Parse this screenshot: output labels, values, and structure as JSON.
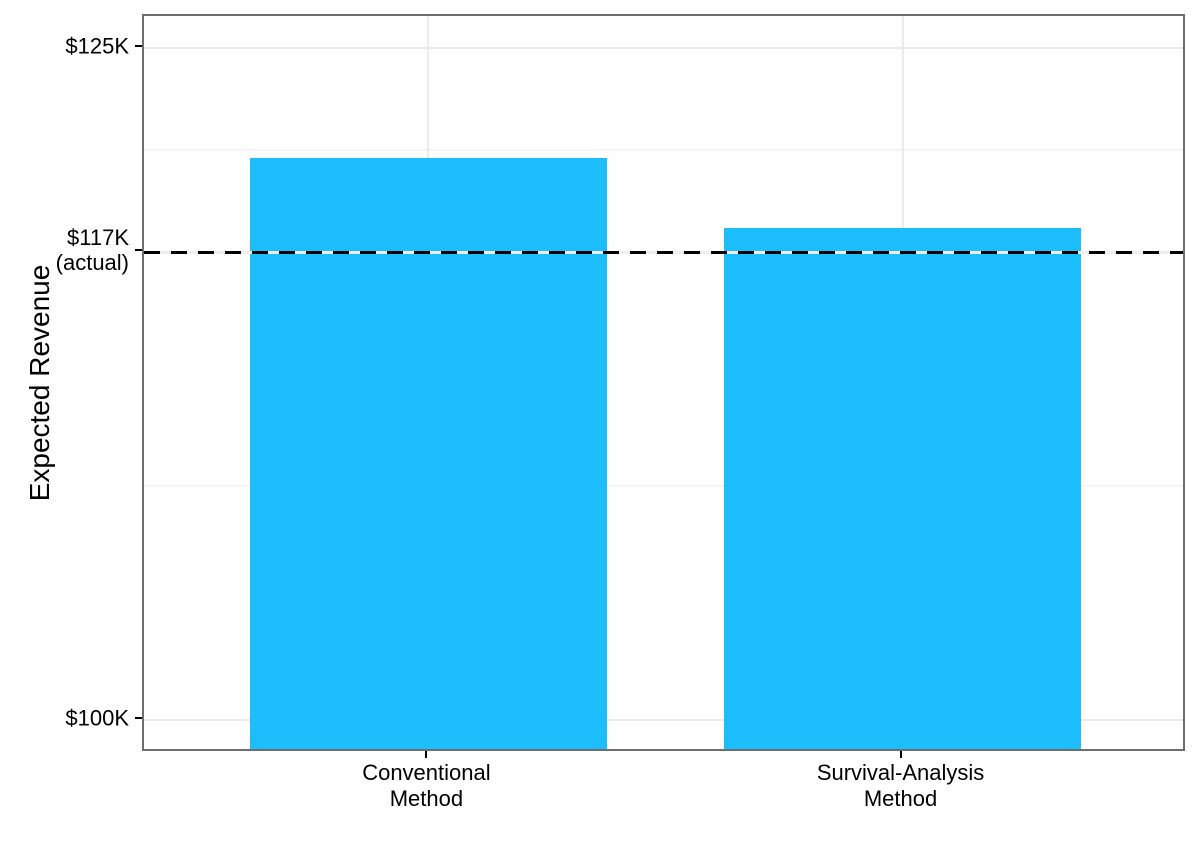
{
  "chart_data": {
    "type": "bar",
    "title": "",
    "xlabel": "",
    "ylabel": "Expected Revenue",
    "categories": [
      "Conventional Method",
      "Survival-Analysis Method"
    ],
    "category_label_lines": [
      [
        "Conventional",
        "Method"
      ],
      [
        "Survival-Analysis",
        "Method"
      ]
    ],
    "series": [
      {
        "name": "Expected Revenue",
        "values": [
          120.9,
          118.3
        ]
      }
    ],
    "values_unit": "$K",
    "reference_line": {
      "value": 117.4,
      "style": "dashed",
      "color": "#000000",
      "label_lines": [
        "$117K",
        "(actual)"
      ]
    },
    "yticks": [
      {
        "value": 100,
        "label_lines": [
          "$100K"
        ]
      },
      {
        "value": 117.4,
        "label_lines": [
          "$117K",
          "(actual)"
        ]
      },
      {
        "value": 125,
        "label_lines": [
          "$125K"
        ]
      }
    ],
    "minor_breaks": [
      108.7,
      121.2
    ],
    "ylim": [
      98.77,
      126.19
    ],
    "grid": true,
    "legend_position": "none",
    "bar_color": "#1BBEFA"
  },
  "colors": {
    "bar": "#1BBEFA",
    "panel_border": "#6e6e6e",
    "grid_major": "#ebebeb",
    "grid_minor": "#f5f5f5",
    "reference_line": "#000000",
    "reference_gap": "#ededed",
    "tick": "#000000",
    "text": "#000000",
    "background": "#ffffff"
  }
}
